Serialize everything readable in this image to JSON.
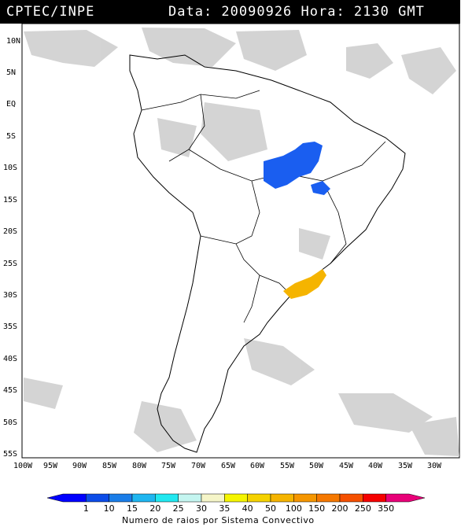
{
  "header": {
    "source": "CPTEC/INPE",
    "datetime": "Data: 20090926 Hora: 2130 GMT"
  },
  "map": {
    "lat_labels": [
      "10N",
      "5N",
      "EQ",
      "5S",
      "10S",
      "15S",
      "20S",
      "25S",
      "30S",
      "35S",
      "40S",
      "45S",
      "50S",
      "55S"
    ],
    "lon_labels": [
      "100W",
      "95W",
      "90W",
      "85W",
      "80W",
      "75W",
      "70W",
      "65W",
      "60W",
      "55W",
      "50W",
      "45W",
      "40W",
      "35W",
      "30W"
    ],
    "region": "South America",
    "cloud_color": "#c8c8c8",
    "land_line_color": "#000000"
  },
  "colorbar": {
    "title": "Numero de raios por Sistema Convectivo",
    "ticks": [
      "1",
      "10",
      "15",
      "20",
      "25",
      "30",
      "35",
      "40",
      "50",
      "100",
      "150",
      "200",
      "250",
      "350"
    ],
    "colors": [
      "#0000ff",
      "#0c4ce8",
      "#1a7de8",
      "#1fb6f0",
      "#21e8f0",
      "#c4f5f0",
      "#f5f5c8",
      "#f5f500",
      "#f5d200",
      "#f5b400",
      "#f59600",
      "#f57800",
      "#f55000",
      "#f50000",
      "#e80078"
    ]
  },
  "systems": [
    {
      "name": "Central Brazil convective system",
      "color": "#1a5ef0",
      "lightning_class": "1-10"
    },
    {
      "name": "Southern Brazil convective system",
      "color": "#f5b400",
      "lightning_class": "50-100"
    }
  ]
}
